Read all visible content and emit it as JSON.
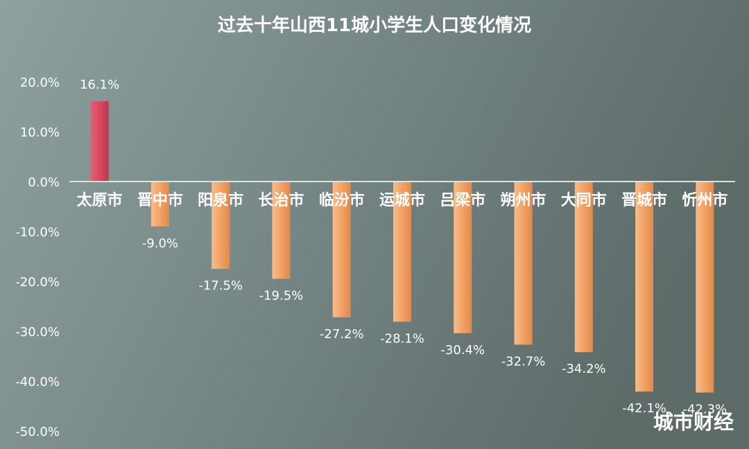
{
  "chart_data": {
    "type": "bar",
    "title": "过去十年山西11城小学生人口变化情况",
    "categories": [
      "太原市",
      "晋中市",
      "阳泉市",
      "长治市",
      "临汾市",
      "运城市",
      "吕梁市",
      "朔州市",
      "大同市",
      "晋城市",
      "忻州市"
    ],
    "values": [
      16.1,
      -9.0,
      -17.5,
      -19.5,
      -27.2,
      -28.1,
      -30.4,
      -32.7,
      -34.2,
      -42.1,
      -42.3
    ],
    "data_labels": [
      "16.1%",
      "-9.0%",
      "-17.5%",
      "-19.5%",
      "-27.2%",
      "-28.1%",
      "-30.4%",
      "-32.7%",
      "-34.2%",
      "-42.1%",
      "-42.3%"
    ],
    "y_ticks": [
      20,
      10,
      0,
      -10,
      -20,
      -30,
      -40,
      -50
    ],
    "y_tick_labels": [
      "20.0%",
      "10.0%",
      "0.0%",
      "-10.0%",
      "-20.0%",
      "-30.0%",
      "-40.0%",
      "-50.0%"
    ],
    "ylim": [
      -50,
      20
    ],
    "xlabel": "",
    "ylabel": "",
    "grid": false,
    "legend": "none",
    "colors": {
      "positive_bar": "#d9485f",
      "negative_bar": "#f3a468",
      "axis_line": "#dde4e4",
      "text": "#ffffff",
      "background_left": "#8ea19f",
      "background_right": "#5d6b69"
    }
  },
  "watermark": "城市财经"
}
